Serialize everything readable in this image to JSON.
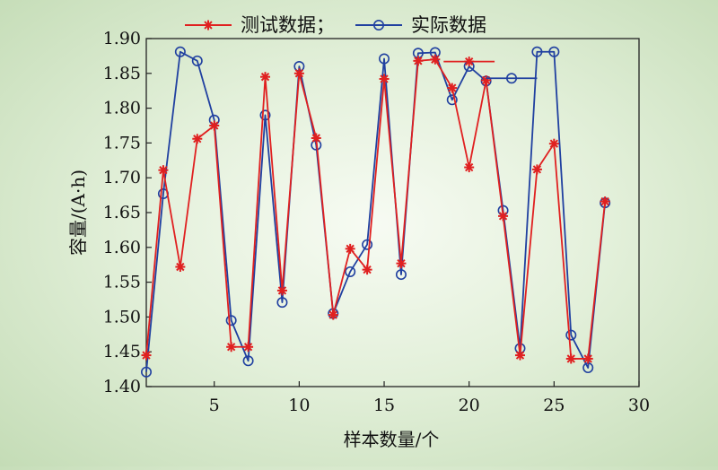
{
  "chart_data": {
    "type": "line",
    "xlabel": "样本数量/个",
    "ylabel": "容量/(A·h)",
    "xlim": [
      1,
      30
    ],
    "ylim": [
      1.4,
      1.9
    ],
    "xticks": [
      5,
      10,
      15,
      20,
      25,
      30
    ],
    "yticks": [
      1.4,
      1.45,
      1.5,
      1.55,
      1.6,
      1.65,
      1.7,
      1.75,
      1.8,
      1.85,
      1.9
    ],
    "legend_position": "top",
    "series": [
      {
        "name": "测试数据；",
        "color": "#e02020",
        "marker": "asterisk",
        "x": [
          1,
          2,
          3,
          4,
          5,
          6,
          7,
          8,
          9,
          10,
          11,
          12,
          13,
          14,
          15,
          16,
          17,
          18,
          19,
          20,
          21,
          22,
          23,
          24,
          25,
          26,
          27,
          28
        ],
        "y": [
          1.445,
          1.711,
          1.572,
          1.756,
          1.775,
          1.457,
          1.457,
          1.845,
          1.538,
          1.85,
          1.757,
          1.503,
          1.598,
          1.568,
          1.842,
          1.577,
          1.868,
          1.87,
          1.829,
          1.715,
          1.84,
          1.645,
          1.445,
          1.712,
          1.749,
          1.44,
          1.44,
          1.666
        ]
      },
      {
        "name": "实际数据",
        "color": "#2040a0",
        "marker": "circle",
        "x": [
          1,
          2,
          3,
          4,
          5,
          6,
          7,
          8,
          9,
          10,
          11,
          12,
          13,
          14,
          15,
          16,
          17,
          18,
          19,
          20,
          21,
          22,
          23,
          24,
          25,
          26,
          27,
          28
        ],
        "y": [
          1.421,
          1.677,
          1.881,
          1.868,
          1.783,
          1.495,
          1.437,
          1.79,
          1.521,
          1.86,
          1.747,
          1.505,
          1.565,
          1.604,
          1.871,
          1.561,
          1.879,
          1.88,
          1.812,
          1.86,
          1.839,
          1.653,
          1.455,
          1.881,
          1.881,
          1.474,
          1.427,
          1.664
        ]
      }
    ]
  }
}
